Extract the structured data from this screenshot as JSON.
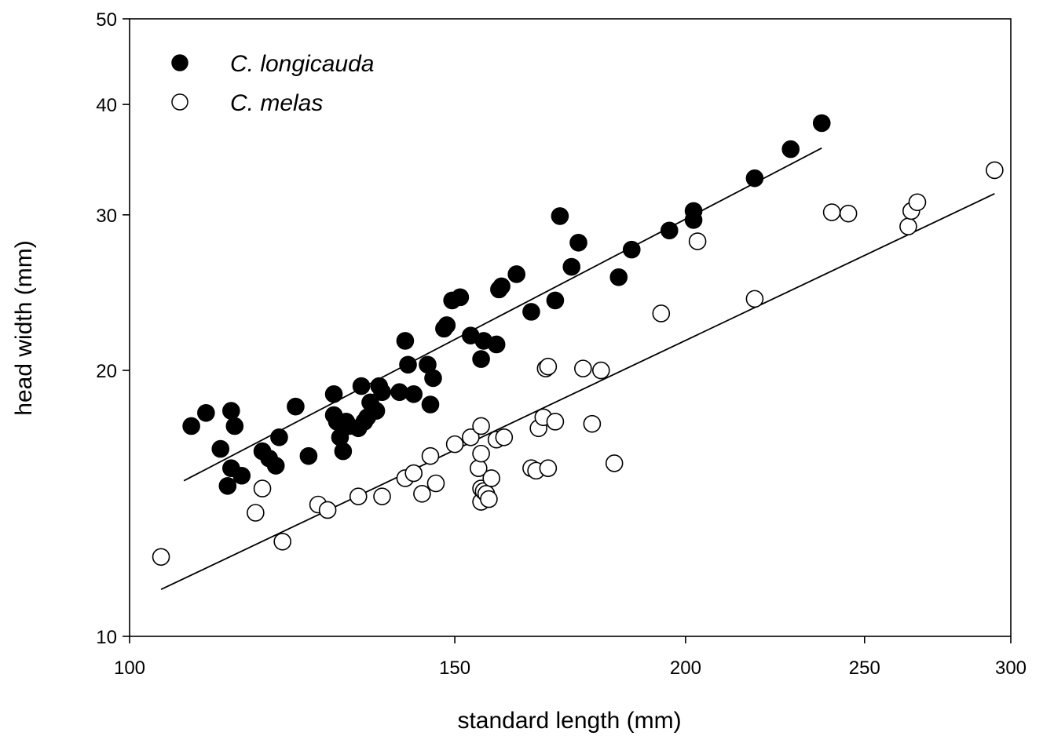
{
  "chart_data": {
    "type": "scatter",
    "xlabel": "standard length (mm)",
    "ylabel": "head width (mm)",
    "x_scale": "log",
    "y_scale": "log",
    "xlim": [
      100,
      300
    ],
    "ylim": [
      10,
      50
    ],
    "x_ticks": [
      100,
      150,
      200,
      250,
      300
    ],
    "y_ticks": [
      10,
      20,
      30,
      40,
      50
    ],
    "grid": false,
    "legend_position": "top-left",
    "series": [
      {
        "name": "C. longicauda",
        "marker": "filled-circle",
        "color": "#000000",
        "points": [
          [
            108,
            17.3
          ],
          [
            110,
            17.9
          ],
          [
            112,
            16.3
          ],
          [
            113,
            14.8
          ],
          [
            113.5,
            15.5
          ],
          [
            113.5,
            18.0
          ],
          [
            114,
            17.3
          ],
          [
            115,
            15.2
          ],
          [
            118,
            16.2
          ],
          [
            119,
            15.9
          ],
          [
            120,
            15.6
          ],
          [
            120.5,
            16.8
          ],
          [
            123,
            18.2
          ],
          [
            125,
            16.0
          ],
          [
            129,
            18.8
          ],
          [
            129,
            17.8
          ],
          [
            129.5,
            17.5
          ],
          [
            130,
            16.8
          ],
          [
            130.5,
            16.2
          ],
          [
            131,
            17.5
          ],
          [
            131.5,
            17.3
          ],
          [
            133,
            17.2
          ],
          [
            133.5,
            19.2
          ],
          [
            134,
            17.5
          ],
          [
            134.5,
            17.7
          ],
          [
            135,
            18.4
          ],
          [
            136,
            18.0
          ],
          [
            136.5,
            19.2
          ],
          [
            137,
            18.9
          ],
          [
            140,
            18.9
          ],
          [
            141,
            21.6
          ],
          [
            141.5,
            20.3
          ],
          [
            142.5,
            18.8
          ],
          [
            145,
            20.3
          ],
          [
            145.5,
            18.3
          ],
          [
            146,
            19.6
          ],
          [
            148,
            22.3
          ],
          [
            148.5,
            22.5
          ],
          [
            149.5,
            24.0
          ],
          [
            151,
            24.2
          ],
          [
            153,
            21.9
          ],
          [
            155,
            20.6
          ],
          [
            155.5,
            21.6
          ],
          [
            158,
            21.4
          ],
          [
            158.5,
            24.7
          ],
          [
            159,
            24.9
          ],
          [
            162,
            25.7
          ],
          [
            165,
            23.3
          ],
          [
            170,
            24.0
          ],
          [
            171,
            29.9
          ],
          [
            173.5,
            26.2
          ],
          [
            175,
            27.9
          ],
          [
            184,
            25.5
          ],
          [
            187,
            27.4
          ],
          [
            196,
            28.8
          ],
          [
            202,
            29.6
          ],
          [
            202,
            30.3
          ],
          [
            218,
            33.0
          ],
          [
            228,
            35.6
          ],
          [
            237,
            38.1
          ]
        ],
        "fit_line": [
          [
            107,
            15.0
          ],
          [
            237,
            35.7
          ]
        ]
      },
      {
        "name": "C. melas",
        "marker": "open-circle",
        "color": "#000000",
        "points": [
          [
            104,
            12.3
          ],
          [
            117,
            13.8
          ],
          [
            118,
            14.7
          ],
          [
            121,
            12.8
          ],
          [
            126.5,
            14.1
          ],
          [
            128,
            13.9
          ],
          [
            133,
            14.4
          ],
          [
            137,
            14.4
          ],
          [
            141,
            15.1
          ],
          [
            142.5,
            15.3
          ],
          [
            144,
            14.5
          ],
          [
            145.5,
            16.0
          ],
          [
            146.5,
            14.9
          ],
          [
            150,
            16.5
          ],
          [
            153,
            16.8
          ],
          [
            154.5,
            15.5
          ],
          [
            155,
            14.7
          ],
          [
            155,
            17.3
          ],
          [
            155,
            16.1
          ],
          [
            155,
            14.2
          ],
          [
            155.5,
            14.6
          ],
          [
            156,
            14.5
          ],
          [
            156.5,
            14.3
          ],
          [
            157,
            15.1
          ],
          [
            158,
            16.7
          ],
          [
            159.5,
            16.8
          ],
          [
            165,
            15.5
          ],
          [
            166,
            15.4
          ],
          [
            166.5,
            17.2
          ],
          [
            167.5,
            17.7
          ],
          [
            168,
            20.1
          ],
          [
            168.5,
            20.2
          ],
          [
            168.5,
            15.5
          ],
          [
            170,
            17.5
          ],
          [
            176,
            20.1
          ],
          [
            178,
            17.4
          ],
          [
            180,
            20.0
          ],
          [
            183,
            15.7
          ],
          [
            194,
            23.2
          ],
          [
            203,
            28.0
          ],
          [
            218,
            24.1
          ],
          [
            240,
            30.2
          ],
          [
            245,
            30.1
          ],
          [
            264,
            29.1
          ],
          [
            265,
            30.3
          ],
          [
            267,
            31.0
          ],
          [
            294,
            33.7
          ]
        ],
        "fit_line": [
          [
            104,
            11.3
          ],
          [
            294,
            31.7
          ]
        ]
      }
    ]
  }
}
